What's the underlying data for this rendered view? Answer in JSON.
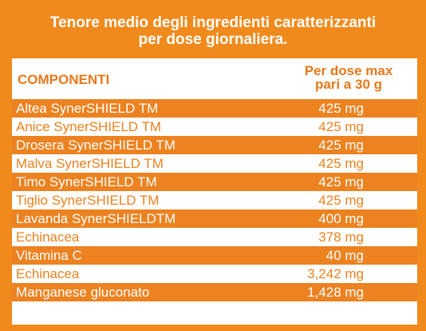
{
  "title": {
    "line1": "Tenore medio degli ingredienti caratterizzanti",
    "line2": "per dose giornaliera."
  },
  "table": {
    "header_components": "COMPONENTI",
    "header_dose_line1": "Per dose max",
    "header_dose_line2": "pari a 30 g",
    "rows": [
      {
        "name": "Altea SynerSHIELD  TM",
        "value": "425 mg"
      },
      {
        "name": "Anice SynerSHIELD TM",
        "value": "425 mg"
      },
      {
        "name": "Drosera SynerSHIELD TM",
        "value": "425 mg"
      },
      {
        "name": "Malva SynerSHIELD TM",
        "value": "425 mg"
      },
      {
        "name": "Timo  SynerSHIELD TM",
        "value": "425 mg"
      },
      {
        "name": "Tiglio SynerSHIELD TM",
        "value": "425 mg"
      },
      {
        "name": "Lavanda SynerSHIELDTM",
        "value": "400 mg"
      },
      {
        "name": "Echinacea",
        "value": "378 mg"
      },
      {
        "name": "Vitamina C",
        "value": "40 mg"
      },
      {
        "name": "Echinacea",
        "value": "3,242 mg"
      },
      {
        "name": "Manganese gluconato",
        "value": "1,428 mg"
      }
    ]
  },
  "colors": {
    "background": "#f08a1c",
    "row_orange": "#ec8220",
    "row_white": "#ffffff",
    "header_text": "#e8781a"
  }
}
